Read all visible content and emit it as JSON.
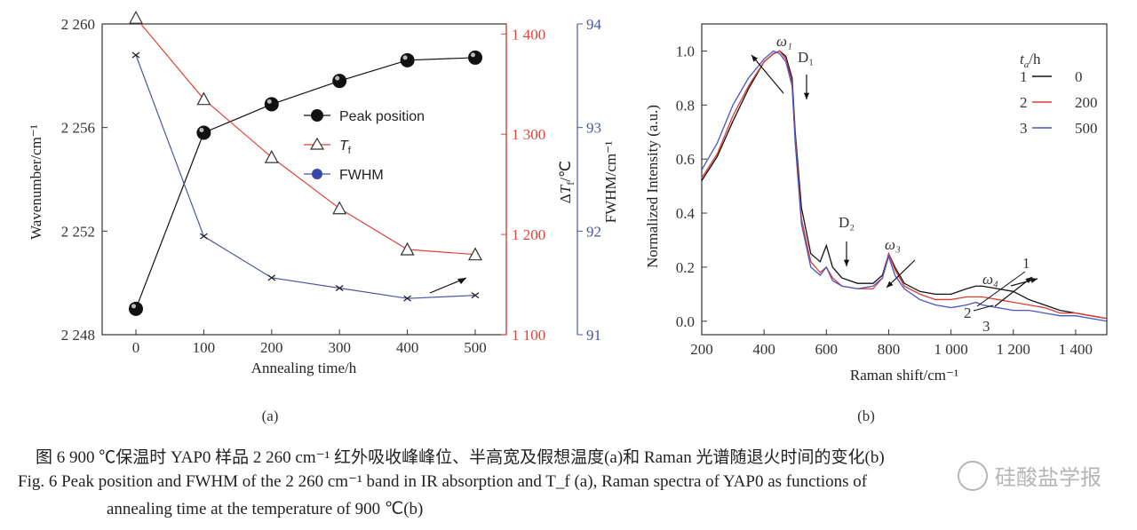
{
  "chart_data": [
    {
      "panel": "(a)",
      "type": "line",
      "xlabel": "Annealing time/h",
      "x": [
        0,
        100,
        200,
        300,
        400,
        500
      ],
      "x_ticks": [
        "0",
        "100",
        "200",
        "300",
        "400",
        "500"
      ],
      "axes": {
        "left": {
          "label": "Wavenumber/cm⁻¹",
          "ylim": [
            2248,
            2260
          ],
          "ticks": [
            "2 248",
            "2 252",
            "2 256",
            "2 260"
          ],
          "color": "#222222"
        },
        "right_inner": {
          "label": "ΔT_f/℃",
          "ylim": [
            1100,
            1410
          ],
          "ticks": [
            "1 100",
            "1 200",
            "1 300",
            "1 400"
          ],
          "color": "#e0433a"
        },
        "right_outer": {
          "label": "FWHM/cm⁻¹",
          "ylim": [
            91,
            94
          ],
          "ticks": [
            "91",
            "92",
            "93",
            "94"
          ],
          "color": "#4a56a3"
        }
      },
      "series": [
        {
          "name": "Peak position",
          "axis": "left",
          "marker": "ball",
          "color": "#111111",
          "values": [
            2249.0,
            2255.8,
            2256.9,
            2257.8,
            2258.6,
            2258.7
          ]
        },
        {
          "name": "T_f",
          "axis": "right_inner",
          "marker": "triangle",
          "color": "#e0433a",
          "values": [
            1416,
            1335,
            1277,
            1226,
            1185,
            1180
          ]
        },
        {
          "name": "FWHM",
          "axis": "right_outer",
          "marker": "x",
          "color": "#4a56a3",
          "values": [
            93.7,
            91.95,
            91.55,
            91.45,
            91.35,
            91.38
          ]
        }
      ],
      "legend": [
        "Peak position",
        "T",
        "f",
        "FWHM"
      ]
    },
    {
      "panel": "(b)",
      "type": "line",
      "xlabel": "Raman shift/cm⁻¹",
      "ylabel": "Normalized Intensity (a.u.)",
      "xlim": [
        200,
        1500
      ],
      "ylim": [
        -0.05,
        1.1
      ],
      "x_ticks": [
        "200",
        "400",
        "600",
        "800",
        "1 000",
        "1 200",
        "1 400"
      ],
      "y_ticks": [
        "0.0",
        "0.2",
        "0.4",
        "0.6",
        "0.8",
        "1.0"
      ],
      "legend_title": "t_a/h",
      "legend": [
        {
          "index": "1",
          "value": "0",
          "color": "#111111"
        },
        {
          "index": "2",
          "value": "200",
          "color": "#e03a35"
        },
        {
          "index": "3",
          "value": "500",
          "color": "#4a56c0"
        }
      ],
      "annotations": [
        "ω₁",
        "D₁",
        "D₂",
        "ω₃",
        "ω₄",
        "1",
        "2",
        "3"
      ],
      "series": [
        {
          "name": "0",
          "color": "#111111",
          "x": [
            200,
            250,
            300,
            350,
            400,
            430,
            450,
            470,
            490,
            500,
            520,
            550,
            580,
            600,
            620,
            650,
            700,
            750,
            780,
            800,
            820,
            850,
            900,
            950,
            1000,
            1050,
            1080,
            1100,
            1150,
            1200,
            1250,
            1300,
            1350,
            1400,
            1450,
            1500
          ],
          "y": [
            0.52,
            0.61,
            0.74,
            0.86,
            0.96,
            0.99,
            1.0,
            0.98,
            0.9,
            0.7,
            0.42,
            0.25,
            0.22,
            0.28,
            0.2,
            0.16,
            0.14,
            0.14,
            0.17,
            0.25,
            0.2,
            0.14,
            0.11,
            0.1,
            0.1,
            0.12,
            0.13,
            0.13,
            0.12,
            0.11,
            0.08,
            0.06,
            0.04,
            0.03,
            0.02,
            0.01
          ]
        },
        {
          "name": "200",
          "color": "#e03a35",
          "x": [
            200,
            250,
            300,
            350,
            400,
            430,
            450,
            470,
            490,
            500,
            520,
            550,
            580,
            600,
            620,
            650,
            700,
            750,
            780,
            800,
            820,
            850,
            900,
            950,
            1000,
            1050,
            1080,
            1100,
            1150,
            1200,
            1250,
            1300,
            1350,
            1400,
            1450,
            1500
          ],
          "y": [
            0.53,
            0.62,
            0.76,
            0.87,
            0.96,
            0.99,
            1.0,
            0.97,
            0.88,
            0.68,
            0.38,
            0.22,
            0.18,
            0.2,
            0.16,
            0.13,
            0.12,
            0.12,
            0.16,
            0.25,
            0.19,
            0.13,
            0.1,
            0.08,
            0.08,
            0.09,
            0.09,
            0.09,
            0.08,
            0.07,
            0.06,
            0.05,
            0.03,
            0.03,
            0.02,
            0.01
          ]
        },
        {
          "name": "500",
          "color": "#4a56c0",
          "x": [
            200,
            250,
            300,
            350,
            400,
            430,
            450,
            470,
            490,
            500,
            520,
            550,
            580,
            600,
            620,
            650,
            700,
            750,
            780,
            800,
            820,
            850,
            900,
            950,
            1000,
            1050,
            1080,
            1100,
            1150,
            1200,
            1250,
            1300,
            1350,
            1400,
            1450,
            1500
          ],
          "y": [
            0.56,
            0.66,
            0.8,
            0.9,
            0.97,
            1.0,
            0.99,
            0.96,
            0.87,
            0.66,
            0.36,
            0.2,
            0.17,
            0.2,
            0.15,
            0.13,
            0.12,
            0.13,
            0.16,
            0.24,
            0.17,
            0.12,
            0.08,
            0.06,
            0.05,
            0.06,
            0.07,
            0.06,
            0.05,
            0.04,
            0.04,
            0.03,
            0.02,
            0.02,
            0.01,
            0.0
          ]
        }
      ]
    }
  ],
  "labels": {
    "panel_a": "(a)",
    "panel_b": "(b)"
  },
  "caption": {
    "cn": "图 6   900 ℃保温时 YAP0 样品 2 260 cm⁻¹ 红外吸收峰峰位、半高宽及假想温度(a)和 Raman 光谱随退火时间的变化(b)",
    "en_line1": "Fig. 6   Peak position and FWHM of the 2 260 cm⁻¹ band in IR absorption and T_f (a), Raman spectra of YAP0 as functions of",
    "en_line2": "annealing time at the temperature of 900 ℃(b)"
  },
  "watermark": "硅酸盐学报"
}
